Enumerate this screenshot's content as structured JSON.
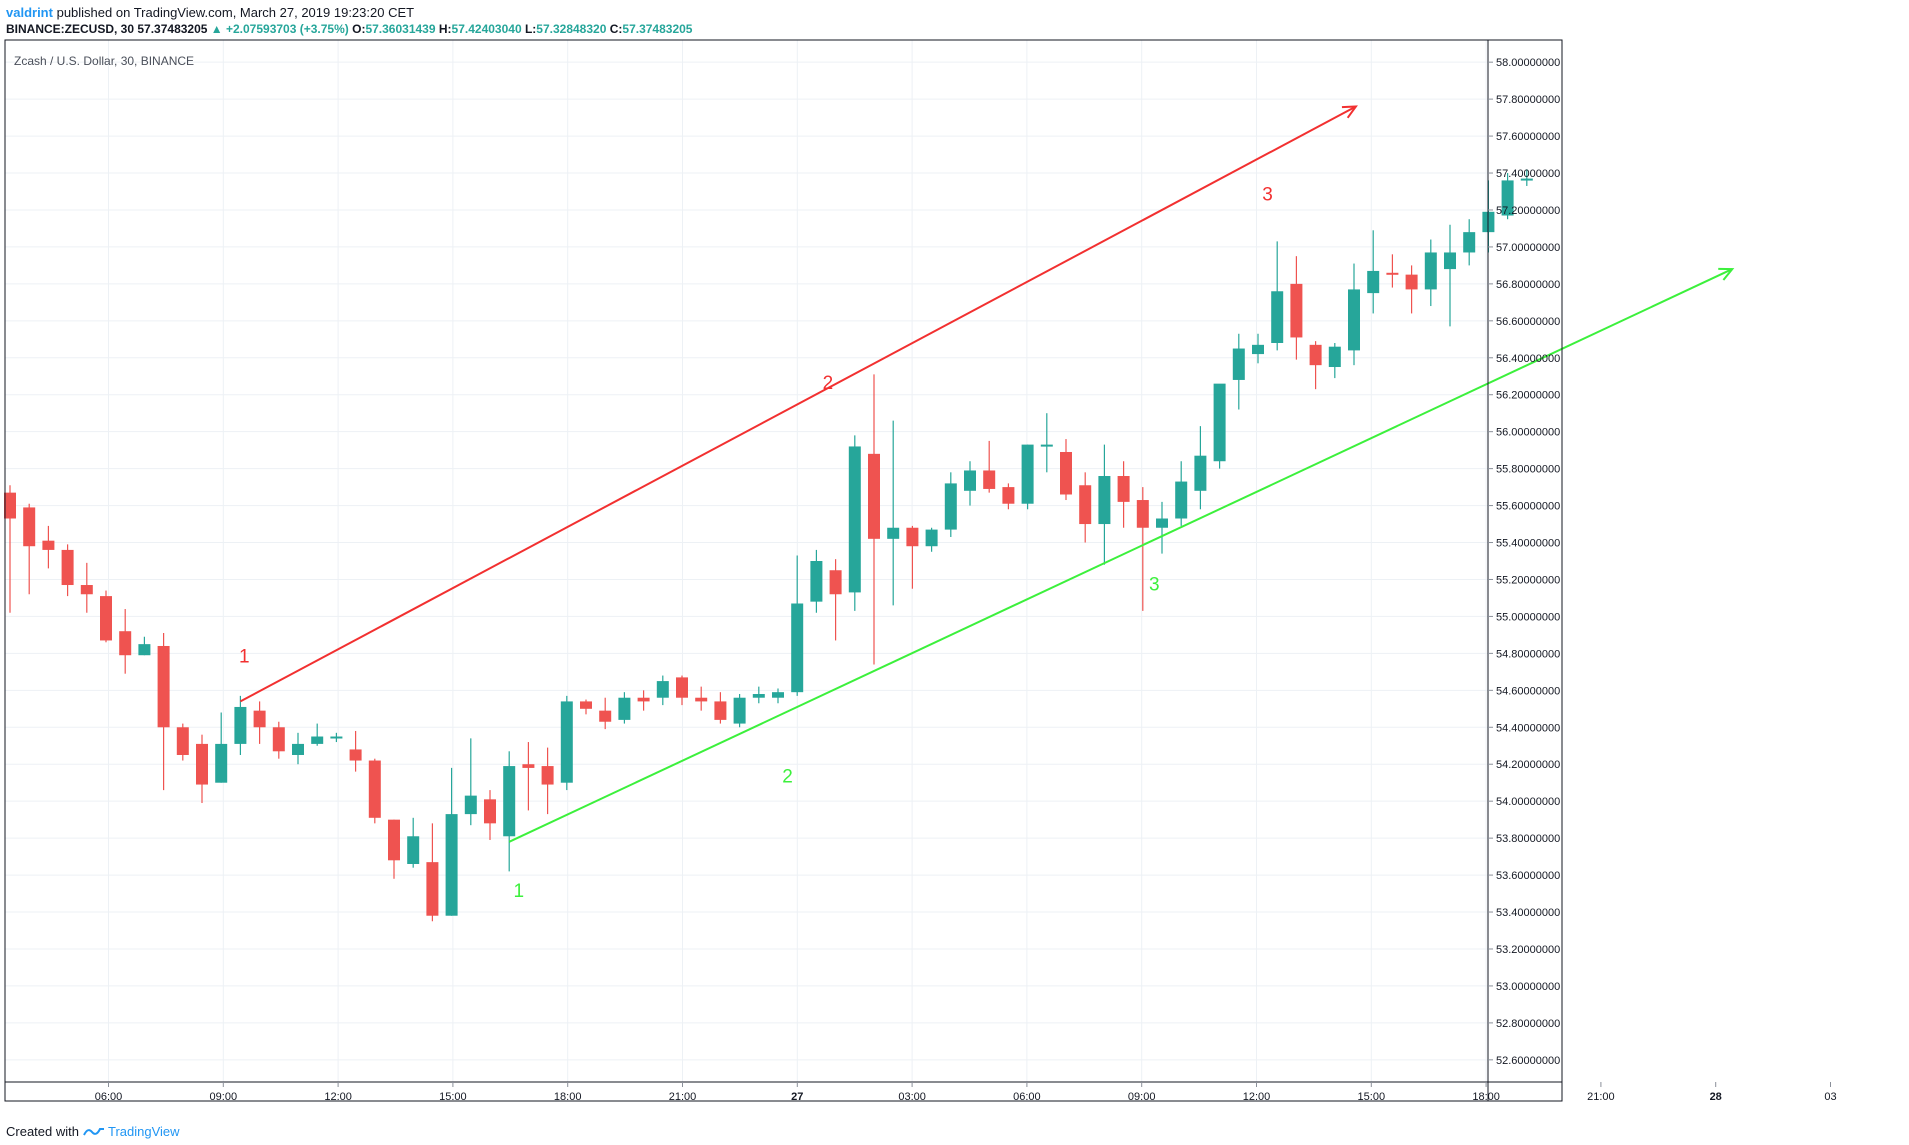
{
  "header": {
    "author": "valdrint",
    "published_text": "published on TradingView.com, March 27, 2019 19:23:20 CET"
  },
  "ohlc": {
    "symbol": "BINANCE:ZECUSD, 30",
    "last": "57.37483205",
    "change": "▲ +2.07593703 (+3.75%)",
    "open_label": "O:",
    "open": "57.36031439",
    "high_label": "H:",
    "high": "57.42403040",
    "low_label": "L:",
    "low": "57.32848320",
    "close_label": "C:",
    "close": "57.37483205"
  },
  "footer": {
    "prefix": "Created with",
    "brand": "TradingView"
  },
  "colors": {
    "up": "#26a69a",
    "down": "#ef5350",
    "red_line": "#f23030",
    "green_line": "#3cf03c",
    "grid": "#edf1f5"
  },
  "chart_data": {
    "type": "candlestick",
    "title": "Zcash / U.S. Dollar, 30, BINANCE",
    "x_ticks": [
      "06:00",
      "09:00",
      "12:00",
      "15:00",
      "18:00",
      "21:00",
      "27",
      "03:00",
      "06:00",
      "09:00",
      "12:00",
      "15:00",
      "18:00",
      "21:00",
      "28",
      "03"
    ],
    "y_ticks": [
      "52.60000000",
      "52.80000000",
      "53.00000000",
      "53.20000000",
      "53.40000000",
      "53.60000000",
      "53.80000000",
      "54.00000000",
      "54.20000000",
      "54.40000000",
      "54.60000000",
      "54.80000000",
      "55.00000000",
      "55.20000000",
      "55.40000000",
      "55.60000000",
      "55.80000000",
      "56.00000000",
      "56.20000000",
      "56.40000000",
      "56.60000000",
      "56.80000000",
      "57.00000000",
      "57.20000000",
      "57.40000000",
      "57.60000000",
      "57.80000000",
      "58.00000000"
    ],
    "ylim": [
      52.48,
      58.12
    ],
    "grid": true,
    "candles": [
      {
        "o": 55.67,
        "h": 55.71,
        "l": 55.02,
        "c": 55.53
      },
      {
        "o": 55.59,
        "h": 55.61,
        "l": 55.12,
        "c": 55.38
      },
      {
        "o": 55.41,
        "h": 55.49,
        "l": 55.26,
        "c": 55.36
      },
      {
        "o": 55.36,
        "h": 55.39,
        "l": 55.11,
        "c": 55.17
      },
      {
        "o": 55.17,
        "h": 55.29,
        "l": 55.02,
        "c": 55.12
      },
      {
        "o": 55.11,
        "h": 55.14,
        "l": 54.86,
        "c": 54.87
      },
      {
        "o": 54.92,
        "h": 55.04,
        "l": 54.69,
        "c": 54.79
      },
      {
        "o": 54.79,
        "h": 54.89,
        "l": 54.79,
        "c": 54.85
      },
      {
        "o": 54.84,
        "h": 54.91,
        "l": 54.06,
        "c": 54.4
      },
      {
        "o": 54.4,
        "h": 54.42,
        "l": 54.22,
        "c": 54.25
      },
      {
        "o": 54.31,
        "h": 54.36,
        "l": 53.99,
        "c": 54.09
      },
      {
        "o": 54.1,
        "h": 54.48,
        "l": 54.1,
        "c": 54.31
      },
      {
        "o": 54.31,
        "h": 54.57,
        "l": 54.25,
        "c": 54.51
      },
      {
        "o": 54.49,
        "h": 54.54,
        "l": 54.31,
        "c": 54.4
      },
      {
        "o": 54.4,
        "h": 54.43,
        "l": 54.23,
        "c": 54.27
      },
      {
        "o": 54.25,
        "h": 54.37,
        "l": 54.2,
        "c": 54.31
      },
      {
        "o": 54.31,
        "h": 54.42,
        "l": 54.3,
        "c": 54.35
      },
      {
        "o": 54.35,
        "h": 54.37,
        "l": 54.32,
        "c": 54.35
      },
      {
        "o": 54.28,
        "h": 54.38,
        "l": 54.16,
        "c": 54.22
      },
      {
        "o": 54.22,
        "h": 54.23,
        "l": 53.88,
        "c": 53.91
      },
      {
        "o": 53.9,
        "h": 53.9,
        "l": 53.58,
        "c": 53.68
      },
      {
        "o": 53.66,
        "h": 53.91,
        "l": 53.64,
        "c": 53.81
      },
      {
        "o": 53.67,
        "h": 53.88,
        "l": 53.35,
        "c": 53.38
      },
      {
        "o": 53.38,
        "h": 54.18,
        "l": 53.38,
        "c": 53.93
      },
      {
        "o": 53.93,
        "h": 54.34,
        "l": 53.87,
        "c": 54.03
      },
      {
        "o": 54.01,
        "h": 54.06,
        "l": 53.79,
        "c": 53.88
      },
      {
        "o": 53.81,
        "h": 54.27,
        "l": 53.62,
        "c": 54.19
      },
      {
        "o": 54.2,
        "h": 54.32,
        "l": 53.95,
        "c": 54.18
      },
      {
        "o": 54.19,
        "h": 54.29,
        "l": 53.93,
        "c": 54.09
      },
      {
        "o": 54.1,
        "h": 54.57,
        "l": 54.06,
        "c": 54.54
      },
      {
        "o": 54.54,
        "h": 54.55,
        "l": 54.47,
        "c": 54.5
      },
      {
        "o": 54.49,
        "h": 54.56,
        "l": 54.39,
        "c": 54.43
      },
      {
        "o": 54.44,
        "h": 54.59,
        "l": 54.42,
        "c": 54.56
      },
      {
        "o": 54.56,
        "h": 54.6,
        "l": 54.49,
        "c": 54.54
      },
      {
        "o": 54.56,
        "h": 54.68,
        "l": 54.52,
        "c": 54.65
      },
      {
        "o": 54.67,
        "h": 54.68,
        "l": 54.52,
        "c": 54.56
      },
      {
        "o": 54.56,
        "h": 54.62,
        "l": 54.49,
        "c": 54.54
      },
      {
        "o": 54.54,
        "h": 54.59,
        "l": 54.42,
        "c": 54.44
      },
      {
        "o": 54.42,
        "h": 54.58,
        "l": 54.4,
        "c": 54.56
      },
      {
        "o": 54.56,
        "h": 54.62,
        "l": 54.53,
        "c": 54.58
      },
      {
        "o": 54.56,
        "h": 54.61,
        "l": 54.53,
        "c": 54.59
      },
      {
        "o": 54.59,
        "h": 55.33,
        "l": 54.57,
        "c": 55.07
      },
      {
        "o": 55.08,
        "h": 55.36,
        "l": 55.02,
        "c": 55.3
      },
      {
        "o": 55.25,
        "h": 55.31,
        "l": 54.87,
        "c": 55.12
      },
      {
        "o": 55.13,
        "h": 55.98,
        "l": 55.03,
        "c": 55.92
      },
      {
        "o": 55.88,
        "h": 56.31,
        "l": 54.74,
        "c": 55.42
      },
      {
        "o": 55.42,
        "h": 56.06,
        "l": 55.06,
        "c": 55.48
      },
      {
        "o": 55.48,
        "h": 55.49,
        "l": 55.15,
        "c": 55.38
      },
      {
        "o": 55.38,
        "h": 55.48,
        "l": 55.35,
        "c": 55.47
      },
      {
        "o": 55.47,
        "h": 55.78,
        "l": 55.43,
        "c": 55.72
      },
      {
        "o": 55.68,
        "h": 55.84,
        "l": 55.6,
        "c": 55.79
      },
      {
        "o": 55.79,
        "h": 55.95,
        "l": 55.67,
        "c": 55.69
      },
      {
        "o": 55.7,
        "h": 55.72,
        "l": 55.58,
        "c": 55.61
      },
      {
        "o": 55.61,
        "h": 55.93,
        "l": 55.58,
        "c": 55.93
      },
      {
        "o": 55.92,
        "h": 56.1,
        "l": 55.78,
        "c": 55.93
      },
      {
        "o": 55.89,
        "h": 55.96,
        "l": 55.63,
        "c": 55.66
      },
      {
        "o": 55.71,
        "h": 55.78,
        "l": 55.4,
        "c": 55.5
      },
      {
        "o": 55.5,
        "h": 55.93,
        "l": 55.28,
        "c": 55.76
      },
      {
        "o": 55.76,
        "h": 55.84,
        "l": 55.48,
        "c": 55.62
      },
      {
        "o": 55.63,
        "h": 55.7,
        "l": 55.03,
        "c": 55.48
      },
      {
        "o": 55.48,
        "h": 55.62,
        "l": 55.34,
        "c": 55.53
      },
      {
        "o": 55.53,
        "h": 55.84,
        "l": 55.49,
        "c": 55.73
      },
      {
        "o": 55.68,
        "h": 56.03,
        "l": 55.58,
        "c": 55.87
      },
      {
        "o": 55.84,
        "h": 56.21,
        "l": 55.8,
        "c": 56.26
      },
      {
        "o": 56.28,
        "h": 56.53,
        "l": 56.12,
        "c": 56.45
      },
      {
        "o": 56.42,
        "h": 56.53,
        "l": 56.37,
        "c": 56.47
      },
      {
        "o": 56.48,
        "h": 57.03,
        "l": 56.44,
        "c": 56.76
      },
      {
        "o": 56.8,
        "h": 56.95,
        "l": 56.39,
        "c": 56.51
      },
      {
        "o": 56.47,
        "h": 56.49,
        "l": 56.23,
        "c": 56.36
      },
      {
        "o": 56.35,
        "h": 56.48,
        "l": 56.29,
        "c": 56.46
      },
      {
        "o": 56.44,
        "h": 56.91,
        "l": 56.36,
        "c": 56.77
      },
      {
        "o": 56.75,
        "h": 57.09,
        "l": 56.64,
        "c": 56.87
      },
      {
        "o": 56.86,
        "h": 56.96,
        "l": 56.78,
        "c": 56.85
      },
      {
        "o": 56.85,
        "h": 56.9,
        "l": 56.64,
        "c": 56.77
      },
      {
        "o": 56.77,
        "h": 57.04,
        "l": 56.68,
        "c": 56.97
      },
      {
        "o": 56.88,
        "h": 57.12,
        "l": 56.57,
        "c": 56.97
      },
      {
        "o": 56.97,
        "h": 57.15,
        "l": 56.9,
        "c": 57.08
      },
      {
        "o": 57.08,
        "h": 57.36,
        "l": 56.97,
        "c": 57.19
      },
      {
        "o": 57.17,
        "h": 57.4,
        "l": 57.15,
        "c": 57.36
      },
      {
        "o": 57.36,
        "h": 57.42,
        "l": 57.33,
        "c": 57.37
      }
    ],
    "candle_start_index": 0,
    "trendlines": [
      {
        "name": "red",
        "x": [
          12,
          70.1
        ],
        "y": [
          54.54,
          57.76
        ],
        "color": "#f23030"
      },
      {
        "name": "green",
        "x": [
          26,
          89.7
        ],
        "y": [
          53.78,
          56.88
        ],
        "color": "#3cf03c"
      }
    ],
    "annotations": [
      {
        "text": "1",
        "x": 12.2,
        "y": 54.75,
        "color": "#f23030"
      },
      {
        "text": "2",
        "x": 42.6,
        "y": 56.23,
        "color": "#f23030"
      },
      {
        "text": "3",
        "x": 65.5,
        "y": 57.25,
        "color": "#f23030"
      },
      {
        "text": "1",
        "x": 26.5,
        "y": 53.48,
        "color": "#3cf03c"
      },
      {
        "text": "2",
        "x": 40.5,
        "y": 54.1,
        "color": "#3cf03c"
      },
      {
        "text": "3",
        "x": 59.6,
        "y": 55.14,
        "color": "#3cf03c"
      }
    ]
  }
}
